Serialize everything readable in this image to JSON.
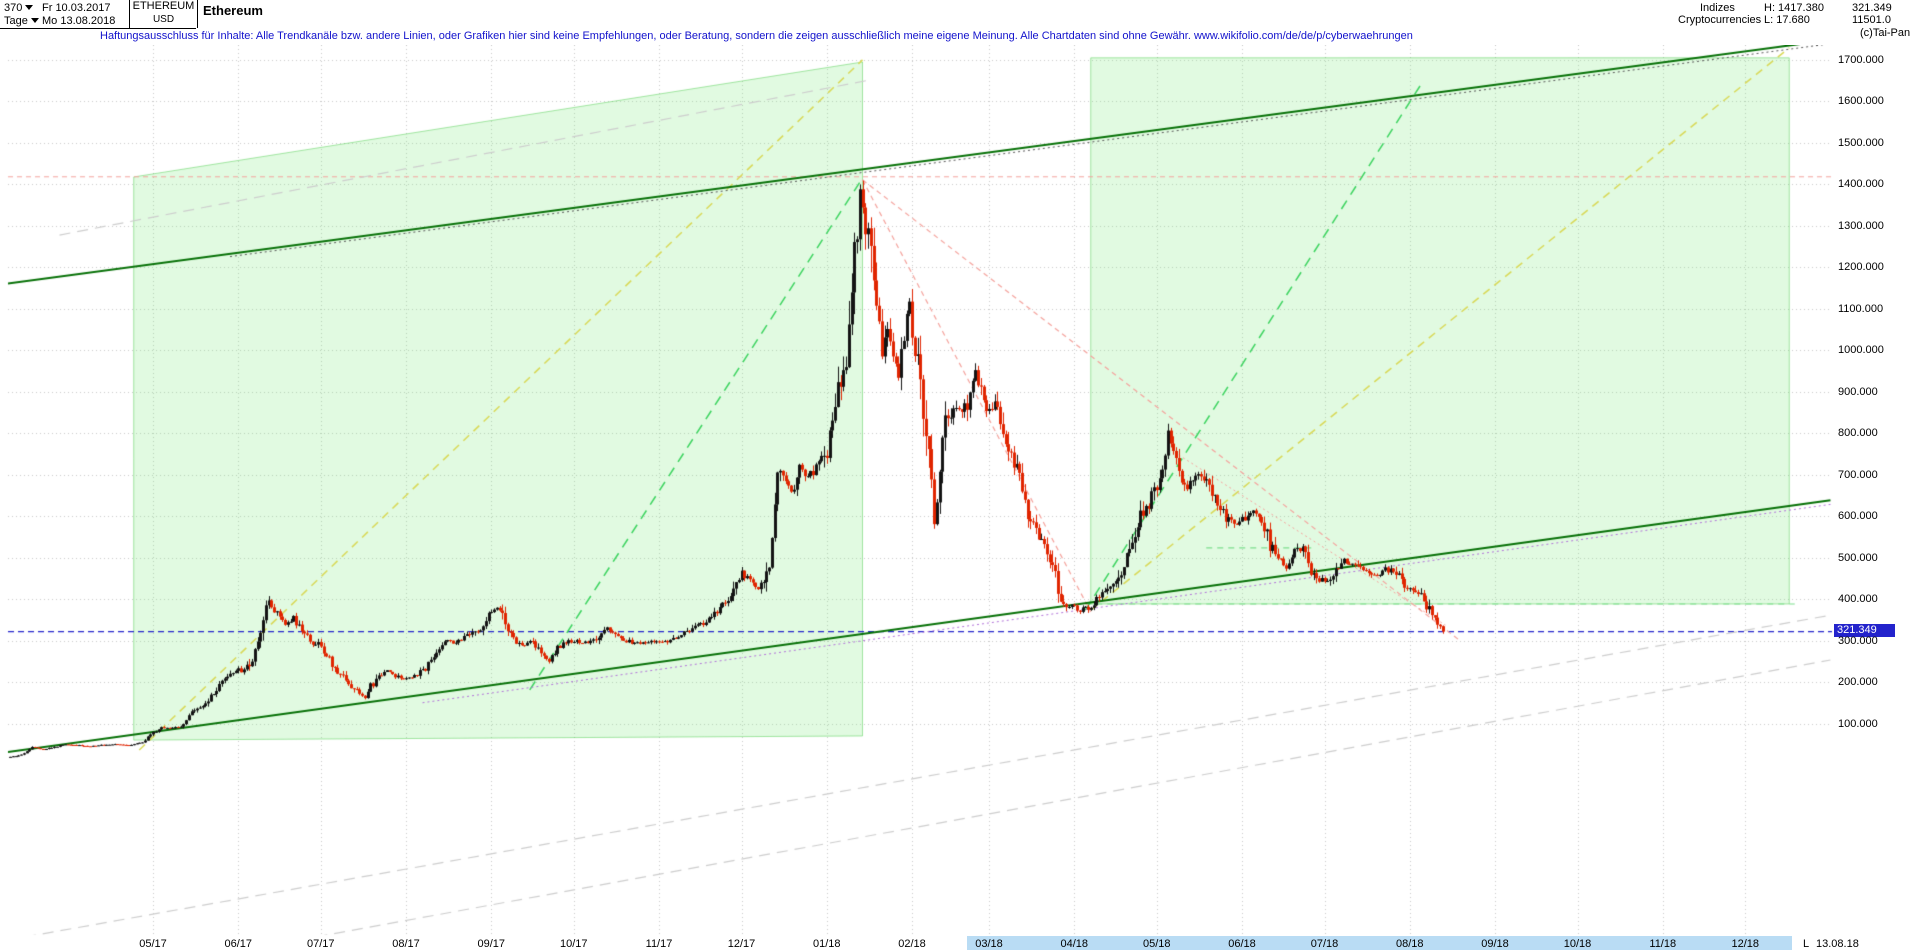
{
  "header": {
    "bars_count": "370",
    "start_date": "Fr 10.03.2017",
    "period": "Tage",
    "end_date": "Mo 13.08.2018",
    "symbol": "ETHEREUM",
    "currency": "USD",
    "name": "Ethereum",
    "category_primary": "Indizes",
    "category_secondary": "Cryptocurrencies",
    "high_label": "H: 1417.380",
    "low_label": "L: 17.680",
    "last_price": "321.349",
    "volume": "11501.0",
    "copyright": "(c)Tai-Pan"
  },
  "disclaimer": "Haftungsausschluss für Inhalte: Alle Trendkanäle bzw. andere Linien, oder Grafiken hier sind keine Empfehlungen, oder Beratung, sondern die zeigen ausschließlich meine eigene Meinung. Alle Chartdaten sind ohne Gewähr.  www.wikifolio.com/de/de/p/cyberwaehrungen",
  "colors": {
    "accent_blue": "#2323cc",
    "channel_green": "#067006",
    "zone_green_fill": "rgba(120,230,120,0.22)",
    "highlight_strip": "#b9dcf4",
    "disclaimer_blue": "#1212cc"
  },
  "chart_data": {
    "type": "candlestick",
    "title": "Ethereum (ETHEREUM USD), Tage, 10.03.2017 - 13.08.2018",
    "high": 1417.38,
    "low": 17.68,
    "last": 321.349,
    "days": 521,
    "candle_colors": {
      "up": "#141414",
      "down": "#e02500"
    },
    "price_axis": {
      "ticks": [
        {
          "v": 1700,
          "label": "1700.000"
        },
        {
          "v": 1600,
          "label": "1600.000"
        },
        {
          "v": 1500,
          "label": "1500.000"
        },
        {
          "v": 1400,
          "label": "1400.000"
        },
        {
          "v": 1300,
          "label": "1300.000"
        },
        {
          "v": 1200,
          "label": "1200.000"
        },
        {
          "v": 1100,
          "label": "1100.000"
        },
        {
          "v": 1000,
          "label": "1000.000"
        },
        {
          "v": 900,
          "label": "900.000"
        },
        {
          "v": 800,
          "label": "800.000"
        },
        {
          "v": 700,
          "label": "700.000"
        },
        {
          "v": 600,
          "label": "600.000"
        },
        {
          "v": 500,
          "label": "500.000"
        },
        {
          "v": 400,
          "label": "400.000"
        },
        {
          "v": 300,
          "label": "300.000"
        },
        {
          "v": 200,
          "label": "200.000"
        },
        {
          "v": 100,
          "label": "100.000"
        }
      ]
    },
    "time_axis": {
      "ticks": [
        {
          "day": 52,
          "label": "05/17",
          "highlight": false
        },
        {
          "day": 83,
          "label": "06/17",
          "highlight": false
        },
        {
          "day": 113,
          "label": "07/17",
          "highlight": false
        },
        {
          "day": 144,
          "label": "08/17",
          "highlight": false
        },
        {
          "day": 175,
          "label": "09/17",
          "highlight": false
        },
        {
          "day": 205,
          "label": "10/17",
          "highlight": false
        },
        {
          "day": 236,
          "label": "11/17",
          "highlight": false
        },
        {
          "day": 266,
          "label": "12/17",
          "highlight": false
        },
        {
          "day": 297,
          "label": "01/18",
          "highlight": false
        },
        {
          "day": 328,
          "label": "02/18",
          "highlight": false
        },
        {
          "day": 356,
          "label": "03/18",
          "highlight": true
        },
        {
          "day": 387,
          "label": "04/18",
          "highlight": true
        },
        {
          "day": 417,
          "label": "05/18",
          "highlight": true
        },
        {
          "day": 448,
          "label": "06/18",
          "highlight": true
        },
        {
          "day": 478,
          "label": "07/18",
          "highlight": true
        },
        {
          "day": 509,
          "label": "08/18",
          "highlight": true
        },
        {
          "day": 540,
          "label": "09/18",
          "highlight": true
        },
        {
          "day": 570,
          "label": "10/18",
          "highlight": true
        },
        {
          "day": 601,
          "label": "11/18",
          "highlight": true
        },
        {
          "day": 631,
          "label": "12/18",
          "highlight": true
        }
      ],
      "highlight_from_day": 348,
      "highlight_to_day": 648,
      "l_marker": "L",
      "last_label": "13.08.18"
    },
    "anchors": [
      [
        0,
        19
      ],
      [
        4,
        24
      ],
      [
        8,
        44
      ],
      [
        12,
        38
      ],
      [
        16,
        43
      ],
      [
        20,
        50
      ],
      [
        24,
        48
      ],
      [
        28,
        45
      ],
      [
        33,
        48
      ],
      [
        38,
        50
      ],
      [
        43,
        48
      ],
      [
        48,
        55
      ],
      [
        52,
        77
      ],
      [
        55,
        90
      ],
      [
        58,
        88
      ],
      [
        62,
        95
      ],
      [
        66,
        125
      ],
      [
        70,
        140
      ],
      [
        74,
        170
      ],
      [
        78,
        205
      ],
      [
        82,
        230
      ],
      [
        85,
        225
      ],
      [
        88,
        255
      ],
      [
        91,
        330
      ],
      [
        94,
        395
      ],
      [
        97,
        365
      ],
      [
        100,
        340
      ],
      [
        103,
        355
      ],
      [
        106,
        320
      ],
      [
        109,
        300
      ],
      [
        112,
        290
      ],
      [
        115,
        265
      ],
      [
        118,
        230
      ],
      [
        121,
        215
      ],
      [
        124,
        190
      ],
      [
        127,
        175
      ],
      [
        129,
        160
      ],
      [
        131,
        190
      ],
      [
        134,
        210
      ],
      [
        137,
        230
      ],
      [
        140,
        215
      ],
      [
        143,
        205
      ],
      [
        146,
        215
      ],
      [
        150,
        225
      ],
      [
        154,
        265
      ],
      [
        158,
        300
      ],
      [
        162,
        295
      ],
      [
        166,
        310
      ],
      [
        170,
        320
      ],
      [
        174,
        360
      ],
      [
        177,
        385
      ],
      [
        180,
        340
      ],
      [
        183,
        300
      ],
      [
        186,
        290
      ],
      [
        190,
        295
      ],
      [
        193,
        270
      ],
      [
        196,
        252
      ],
      [
        199,
        285
      ],
      [
        202,
        295
      ],
      [
        205,
        300
      ],
      [
        209,
        295
      ],
      [
        213,
        298
      ],
      [
        217,
        330
      ],
      [
        221,
        305
      ],
      [
        225,
        298
      ],
      [
        229,
        292
      ],
      [
        233,
        300
      ],
      [
        237,
        298
      ],
      [
        241,
        302
      ],
      [
        245,
        318
      ],
      [
        249,
        330
      ],
      [
        253,
        348
      ],
      [
        257,
        365
      ],
      [
        261,
        400
      ],
      [
        264,
        430
      ],
      [
        266,
        460
      ],
      [
        268,
        452
      ],
      [
        270,
        435
      ],
      [
        272,
        428
      ],
      [
        274,
        445
      ],
      [
        276,
        470
      ],
      [
        278,
        620
      ],
      [
        280,
        730
      ],
      [
        282,
        680
      ],
      [
        284,
        650
      ],
      [
        287,
        720
      ],
      [
        290,
        695
      ],
      [
        293,
        715
      ],
      [
        296,
        745
      ],
      [
        298,
        780
      ],
      [
        300,
        890
      ],
      [
        302,
        940
      ],
      [
        304,
        985
      ],
      [
        306,
        1120
      ],
      [
        308,
        1310
      ],
      [
        309,
        1395
      ],
      [
        310,
        1360
      ],
      [
        311,
        1290
      ],
      [
        313,
        1220
      ],
      [
        315,
        1080
      ],
      [
        317,
        1010
      ],
      [
        319,
        1060
      ],
      [
        321,
        990
      ],
      [
        323,
        945
      ],
      [
        325,
        1040
      ],
      [
        327,
        1100
      ],
      [
        329,
        1010
      ],
      [
        331,
        920
      ],
      [
        333,
        830
      ],
      [
        335,
        680
      ],
      [
        336,
        580
      ],
      [
        338,
        700
      ],
      [
        340,
        810
      ],
      [
        343,
        845
      ],
      [
        346,
        850
      ],
      [
        349,
        880
      ],
      [
        351,
        945
      ],
      [
        353,
        900
      ],
      [
        355,
        860
      ],
      [
        358,
        865
      ],
      [
        361,
        815
      ],
      [
        364,
        740
      ],
      [
        367,
        690
      ],
      [
        370,
        610
      ],
      [
        373,
        560
      ],
      [
        376,
        545
      ],
      [
        379,
        480
      ],
      [
        381,
        420
      ],
      [
        383,
        390
      ],
      [
        385,
        382
      ],
      [
        387,
        380
      ],
      [
        389,
        372
      ],
      [
        391,
        380
      ],
      [
        393,
        378
      ],
      [
        395,
        398
      ],
      [
        398,
        415
      ],
      [
        401,
        425
      ],
      [
        404,
        470
      ],
      [
        407,
        515
      ],
      [
        410,
        585
      ],
      [
        413,
        620
      ],
      [
        416,
        660
      ],
      [
        418,
        690
      ],
      [
        420,
        760
      ],
      [
        421,
        800
      ],
      [
        423,
        760
      ],
      [
        425,
        700
      ],
      [
        428,
        672
      ],
      [
        431,
        700
      ],
      [
        434,
        690
      ],
      [
        437,
        660
      ],
      [
        440,
        615
      ],
      [
        443,
        590
      ],
      [
        446,
        582
      ],
      [
        449,
        595
      ],
      [
        452,
        612
      ],
      [
        455,
        598
      ],
      [
        458,
        530
      ],
      [
        461,
        500
      ],
      [
        464,
        478
      ],
      [
        467,
        512
      ],
      [
        470,
        528
      ],
      [
        473,
        470
      ],
      [
        476,
        448
      ],
      [
        479,
        438
      ],
      [
        482,
        468
      ],
      [
        485,
        490
      ],
      [
        488,
        478
      ],
      [
        491,
        470
      ],
      [
        494,
        462
      ],
      [
        497,
        452
      ],
      [
        500,
        470
      ],
      [
        503,
        465
      ],
      [
        506,
        445
      ],
      [
        509,
        420
      ],
      [
        511,
        412
      ],
      [
        513,
        408
      ],
      [
        515,
        382
      ],
      [
        517,
        368
      ],
      [
        519,
        340
      ],
      [
        520,
        332
      ],
      [
        521,
        321.349
      ]
    ],
    "regions": [
      {
        "name": "channel-zone-left",
        "points": [
          [
            45,
            1417
          ],
          [
            310,
            1694
          ],
          [
            310,
            70
          ],
          [
            45,
            60
          ]
        ],
        "fill": "rgba(120,230,120,0.22)",
        "stroke": "rgba(60,200,60,0.45)"
      },
      {
        "name": "channel-zone-right",
        "points": [
          [
            393,
            1704
          ],
          [
            647,
            1704
          ],
          [
            647,
            388
          ],
          [
            393,
            388
          ]
        ],
        "fill": "rgba(120,230,120,0.22)",
        "stroke": "rgba(60,200,60,0.45)"
      }
    ],
    "levels": [
      {
        "name": "resistance-1400",
        "price": 1417.38,
        "color": "#f4a29c",
        "width": 1,
        "dash": [
          5,
          4
        ]
      },
      {
        "name": "support-390",
        "price": 388,
        "from": 391,
        "to": 649,
        "color": "#7ddf8e",
        "width": 1.2,
        "dash": [
          6,
          5
        ]
      },
      {
        "name": "support-523",
        "price": 523,
        "from": 435,
        "to": 475,
        "color": "#7ddf8e",
        "width": 1.2,
        "dash": [
          6,
          5
        ]
      },
      {
        "name": "current-price-line",
        "price": 321.349,
        "color": "#2323cc",
        "width": 1.4,
        "dash": [
          6,
          4
        ]
      }
    ],
    "trend_lines": [
      {
        "name": "gray-upper",
        "from": [
          18,
          1277
        ],
        "to": [
          313,
          1651
        ],
        "color": "#cdcdcd",
        "width": 1.2,
        "dash": [
          11,
          7
        ]
      },
      {
        "name": "gray-lower-1",
        "from": [
          -1,
          -422
        ],
        "to": [
          662,
          361
        ],
        "color": "#cdcdcd",
        "width": 1.2,
        "dash": [
          11,
          7
        ]
      },
      {
        "name": "gray-lower-2",
        "from": [
          105,
          -422
        ],
        "to": [
          662,
          253
        ],
        "color": "#cdcdcd",
        "width": 1.2,
        "dash": [
          11,
          7
        ]
      },
      {
        "name": "fan-yellow-1",
        "from": [
          47,
          36
        ],
        "to": [
          310,
          1699
        ],
        "color": "#d8d855",
        "width": 1.5,
        "dash": [
          8,
          6
        ]
      },
      {
        "name": "fan-yellow-2",
        "from": [
          393,
          373
        ],
        "to": [
          647,
          1728
        ],
        "color": "#d8d855",
        "width": 1.5,
        "dash": [
          8,
          6
        ]
      },
      {
        "name": "fan-green-1",
        "from": [
          189,
          181
        ],
        "to": [
          310,
          1414
        ],
        "color": "#3bd35e",
        "width": 1.5,
        "dash": [
          10,
          7
        ]
      },
      {
        "name": "fan-green-2",
        "from": [
          391,
          373
        ],
        "to": [
          513,
          1639
        ],
        "color": "#3bd35e",
        "width": 1.5,
        "dash": [
          10,
          7
        ]
      },
      {
        "name": "decline-salmon-steep",
        "from": [
          310,
          1410
        ],
        "to": [
          393,
          369
        ],
        "color": "#f4a29c",
        "width": 1.2,
        "dash": [
          5,
          4
        ]
      },
      {
        "name": "decline-salmon-shallow",
        "from": [
          310,
          1410
        ],
        "to": [
          527,
          301
        ],
        "color": "#f4a29c",
        "width": 1.2,
        "dash": [
          5,
          4
        ]
      },
      {
        "name": "decline-salmon-short",
        "from": [
          425,
          747
        ],
        "to": [
          522,
          337
        ],
        "color": "#f4a29c",
        "width": 1,
        "dash": [
          2,
          3
        ]
      },
      {
        "name": "channel-top-dotted",
        "from": [
          80,
          1225
        ],
        "to": [
          662,
          1738
        ],
        "color": "#555555",
        "width": 1,
        "dash": [
          2,
          3
        ]
      },
      {
        "name": "support-dotted-purple",
        "from": [
          150,
          150
        ],
        "to": [
          662,
          628
        ],
        "color": "#b06fd8",
        "width": 1,
        "dash": [
          2,
          3
        ]
      },
      {
        "name": "channel-top",
        "from": [
          -1,
          1160
        ],
        "to": [
          662,
          1747
        ],
        "color": "#067006",
        "width": 2
      },
      {
        "name": "channel-bottom",
        "from": [
          -1,
          31
        ],
        "to": [
          662,
          638
        ],
        "color": "#067006",
        "width": 2
      }
    ]
  }
}
